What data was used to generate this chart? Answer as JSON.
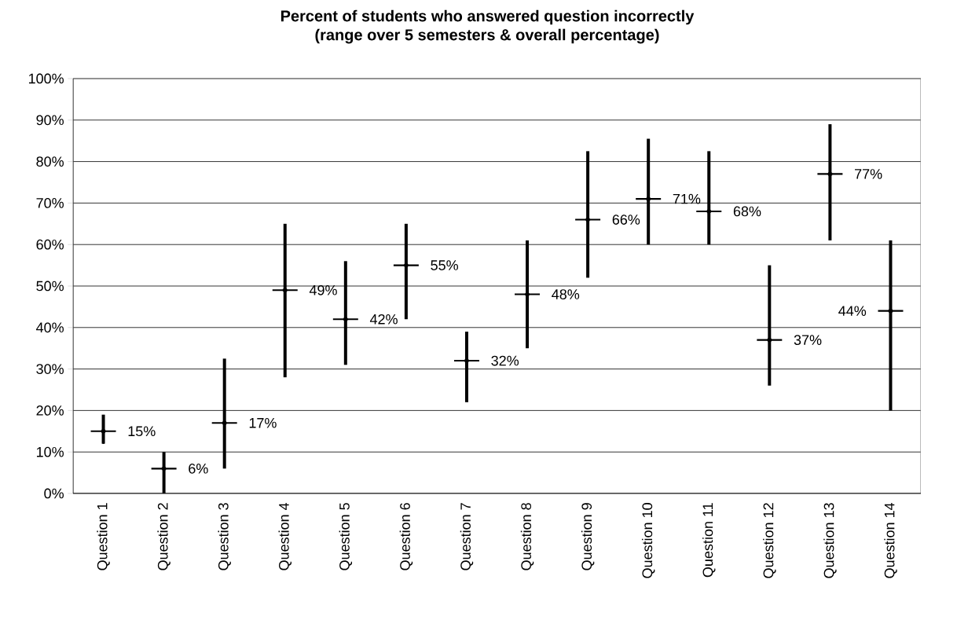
{
  "chart_data": {
    "type": "scatter",
    "title": "Percent of students who answered question incorrectly",
    "subtitle": "(range over 5 semesters & overall percentage)",
    "categories": [
      "Question 1",
      "Question 2",
      "Question 3",
      "Question 4",
      "Question 5",
      "Question 6",
      "Question 7",
      "Question 8",
      "Question 9",
      "Question 10",
      "Question 11",
      "Question 12",
      "Question 13",
      "Question 14"
    ],
    "values": [
      15,
      6,
      17,
      49,
      42,
      55,
      32,
      48,
      66,
      71,
      68,
      37,
      77,
      44
    ],
    "value_labels": [
      "15%",
      "6%",
      "17%",
      "49%",
      "42%",
      "55%",
      "32%",
      "48%",
      "66%",
      "71%",
      "68%",
      "37%",
      "77%",
      "44%"
    ],
    "errors": [
      [
        12,
        19
      ],
      [
        0,
        10
      ],
      [
        6,
        32.5
      ],
      [
        28,
        65
      ],
      [
        31,
        56
      ],
      [
        42,
        65
      ],
      [
        22,
        39
      ],
      [
        35,
        61
      ],
      [
        52,
        82.5
      ],
      [
        60,
        85.5
      ],
      [
        60,
        82.5
      ],
      [
        26,
        55
      ],
      [
        61,
        89
      ],
      [
        20,
        61
      ]
    ],
    "color": "#000000",
    "marker": "cross",
    "grid": "y",
    "ylim": [
      0,
      100
    ],
    "yticks": [
      {
        "value": 0,
        "label": "0%"
      },
      {
        "value": 10,
        "label": "10%"
      },
      {
        "value": 20,
        "label": "20%"
      },
      {
        "value": 30,
        "label": "30%"
      },
      {
        "value": 40,
        "label": "40%"
      },
      {
        "value": 50,
        "label": "50%"
      },
      {
        "value": 60,
        "label": "60%"
      },
      {
        "value": 70,
        "label": "70%"
      },
      {
        "value": 80,
        "label": "80%"
      },
      {
        "value": 90,
        "label": "90%"
      },
      {
        "value": 100,
        "label": "100%"
      }
    ]
  }
}
